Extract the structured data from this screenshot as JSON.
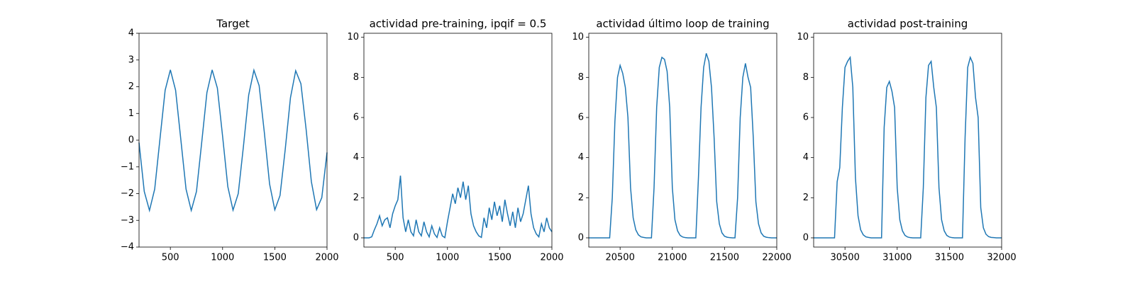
{
  "chart_data": [
    {
      "type": "line",
      "title": "Target",
      "x": [
        200,
        250,
        300,
        350,
        400,
        450,
        500,
        550,
        600,
        650,
        700,
        750,
        800,
        850,
        900,
        950,
        1000,
        1050,
        1100,
        1150,
        1200,
        1250,
        1300,
        1350,
        1400,
        1450,
        1500,
        1550,
        1600,
        1650,
        1700,
        1750,
        1800,
        1850,
        1900,
        1950,
        2000
      ],
      "series": [
        {
          "color": "#1f77b4",
          "values": [
            -0.09,
            -1.92,
            -2.63,
            -1.83,
            0.03,
            1.87,
            2.63,
            1.87,
            0.03,
            -1.83,
            -2.63,
            -1.92,
            -0.09,
            1.78,
            2.63,
            1.95,
            0.15,
            -1.74,
            -2.62,
            -2.0,
            -0.22,
            1.69,
            2.62,
            2.04,
            0.28,
            -1.64,
            -2.61,
            -2.07,
            -0.34,
            1.59,
            2.6,
            2.11,
            0.4,
            -1.55,
            -2.6,
            -2.15,
            -0.46
          ]
        }
      ],
      "xlim": [
        200,
        2000
      ],
      "xticks": [
        500,
        1000,
        1500,
        2000
      ],
      "ylim": [
        -4,
        4
      ],
      "yticks": [
        {
          "value": -4,
          "label": "−4"
        },
        {
          "value": -3,
          "label": "−3"
        },
        {
          "value": -2,
          "label": "−2"
        },
        {
          "value": -1,
          "label": "−1"
        },
        0,
        1,
        2,
        3,
        4
      ]
    },
    {
      "type": "line",
      "title": "actividad pre-training, ipqif = 0.5",
      "x": [
        200,
        225,
        250,
        275,
        300,
        325,
        350,
        375,
        400,
        425,
        450,
        475,
        500,
        525,
        550,
        575,
        600,
        625,
        650,
        675,
        700,
        725,
        750,
        775,
        800,
        825,
        850,
        875,
        900,
        925,
        950,
        975,
        1000,
        1025,
        1050,
        1075,
        1100,
        1125,
        1150,
        1175,
        1200,
        1225,
        1250,
        1275,
        1300,
        1325,
        1350,
        1375,
        1400,
        1425,
        1450,
        1475,
        1500,
        1525,
        1550,
        1575,
        1600,
        1625,
        1650,
        1675,
        1700,
        1725,
        1750,
        1775,
        1800,
        1825,
        1850,
        1875,
        1900,
        1925,
        1950,
        1975,
        2000
      ],
      "series": [
        {
          "color": "#1f77b4",
          "values": [
            0,
            0,
            0,
            0.05,
            0.4,
            0.7,
            1.1,
            0.6,
            0.9,
            1.0,
            0.5,
            1.2,
            1.6,
            1.9,
            3.1,
            1.0,
            0.3,
            0.9,
            0.3,
            0.1,
            0.9,
            0.3,
            0.1,
            0.8,
            0.3,
            0.05,
            0.6,
            0.2,
            0.02,
            0.5,
            0.1,
            0.01,
            0.8,
            1.5,
            2.2,
            1.7,
            2.5,
            2.0,
            2.8,
            1.9,
            2.6,
            1.2,
            0.6,
            0.3,
            0.1,
            0.02,
            1.0,
            0.5,
            1.5,
            0.9,
            1.8,
            1.1,
            1.6,
            0.8,
            1.9,
            1.2,
            0.6,
            1.3,
            0.5,
            1.5,
            0.8,
            1.2,
            1.9,
            2.6,
            1.2,
            0.5,
            0.2,
            0.05,
            0.7,
            0.3,
            1.0,
            0.5,
            0.3
          ]
        }
      ],
      "xlim": [
        200,
        2000
      ],
      "xticks": [
        500,
        1000,
        1500,
        2000
      ],
      "ylim": [
        -0.46,
        10.2
      ],
      "yticks": [
        0,
        2,
        4,
        6,
        8,
        10
      ]
    },
    {
      "type": "line",
      "title": "actividad último loop de training",
      "x": [
        20200,
        20225,
        20250,
        20275,
        20300,
        20325,
        20350,
        20375,
        20400,
        20425,
        20450,
        20475,
        20500,
        20525,
        20550,
        20575,
        20600,
        20625,
        20650,
        20675,
        20700,
        20725,
        20750,
        20775,
        20800,
        20825,
        20850,
        20875,
        20900,
        20925,
        20950,
        20975,
        21000,
        21025,
        21050,
        21075,
        21100,
        21125,
        21150,
        21175,
        21200,
        21225,
        21250,
        21275,
        21300,
        21325,
        21350,
        21375,
        21400,
        21425,
        21450,
        21475,
        21500,
        21525,
        21550,
        21575,
        21600,
        21625,
        21650,
        21675,
        21700,
        21725,
        21750,
        21775,
        21800,
        21825,
        21850,
        21875,
        21900,
        21925,
        21950,
        21975,
        22000
      ],
      "series": [
        {
          "color": "#1f77b4",
          "values": [
            0,
            0,
            0,
            0,
            0,
            0,
            0,
            0,
            0,
            2,
            5.8,
            8.0,
            8.6,
            8.2,
            7.5,
            6.0,
            2.5,
            1.0,
            0.4,
            0.15,
            0.05,
            0.02,
            0,
            0,
            0,
            2.5,
            6.5,
            8.5,
            9.0,
            8.9,
            8.3,
            6.5,
            2.5,
            0.9,
            0.35,
            0.12,
            0.04,
            0.01,
            0,
            0,
            0,
            0,
            3.0,
            6.5,
            8.5,
            9.2,
            8.8,
            7.5,
            5.0,
            1.8,
            0.7,
            0.25,
            0.08,
            0.03,
            0.01,
            0,
            0,
            2.0,
            6.0,
            8.0,
            8.7,
            8.0,
            7.5,
            5.0,
            1.8,
            0.7,
            0.25,
            0.08,
            0.03,
            0.01,
            0,
            0,
            0
          ]
        }
      ],
      "xlim": [
        20200,
        22000
      ],
      "xticks": [
        20500,
        21000,
        21500,
        22000
      ],
      "ylim": [
        -0.46,
        10.2
      ],
      "yticks": [
        0,
        2,
        4,
        6,
        8,
        10
      ]
    },
    {
      "type": "line",
      "title": "actividad post-training",
      "x": [
        30200,
        30225,
        30250,
        30275,
        30300,
        30325,
        30350,
        30375,
        30400,
        30425,
        30450,
        30475,
        30500,
        30525,
        30550,
        30575,
        30600,
        30625,
        30650,
        30675,
        30700,
        30725,
        30750,
        30775,
        30800,
        30825,
        30850,
        30875,
        30900,
        30925,
        30950,
        30975,
        31000,
        31025,
        31050,
        31075,
        31100,
        31125,
        31150,
        31175,
        31200,
        31225,
        31250,
        31275,
        31300,
        31325,
        31350,
        31375,
        31400,
        31425,
        31450,
        31475,
        31500,
        31525,
        31550,
        31575,
        31600,
        31625,
        31650,
        31675,
        31700,
        31725,
        31750,
        31775,
        31800,
        31825,
        31850,
        31875,
        31900,
        31925,
        31950,
        31975,
        32000
      ],
      "series": [
        {
          "color": "#1f77b4",
          "values": [
            0,
            0,
            0,
            0,
            0,
            0,
            0,
            0,
            0,
            2.8,
            3.5,
            6.5,
            8.5,
            8.8,
            9.0,
            7.5,
            3.0,
            1.1,
            0.4,
            0.15,
            0.05,
            0.02,
            0,
            0,
            0,
            0,
            0,
            5.5,
            7.5,
            7.8,
            7.3,
            6.5,
            2.5,
            0.9,
            0.35,
            0.12,
            0.04,
            0.01,
            0,
            0,
            0,
            0,
            2.5,
            7.0,
            8.6,
            8.8,
            7.5,
            6.5,
            2.5,
            0.9,
            0.35,
            0.12,
            0.04,
            0.01,
            0,
            0,
            0,
            0,
            5.0,
            8.5,
            9.0,
            8.7,
            7.0,
            6.0,
            1.5,
            0.5,
            0.18,
            0.06,
            0.02,
            0.01,
            0,
            0,
            0
          ]
        }
      ],
      "xlim": [
        30200,
        32000
      ],
      "xticks": [
        30500,
        31000,
        31500,
        32000
      ],
      "ylim": [
        -0.46,
        10.2
      ],
      "yticks": [
        0,
        2,
        4,
        6,
        8,
        10
      ]
    }
  ]
}
